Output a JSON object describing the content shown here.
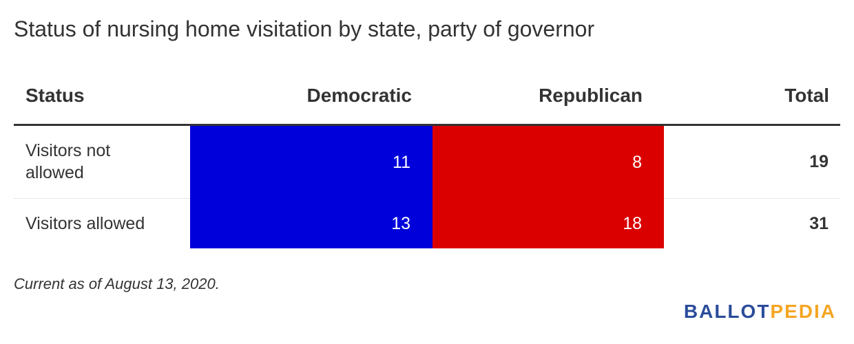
{
  "title": "Status of nursing home visitation by state, party of governor",
  "colors": {
    "democratic": "#0000db",
    "republican": "#db0000",
    "logo_ballot": "#2b4c9b",
    "logo_pedia": "#f5a623"
  },
  "chart_data": {
    "type": "table",
    "title": "Status of nursing home visitation by state, party of governor",
    "columns": [
      "Status",
      "Democratic",
      "Republican",
      "Total"
    ],
    "rows": [
      {
        "status": "Visitors not allowed",
        "democratic": 11,
        "republican": 8,
        "total": 19
      },
      {
        "status": "Visitors allowed",
        "democratic": 13,
        "republican": 18,
        "total": 31
      }
    ]
  },
  "note": "Current as of August 13, 2020.",
  "logo": {
    "part1": "BALLOT",
    "part2": "PEDIA"
  }
}
